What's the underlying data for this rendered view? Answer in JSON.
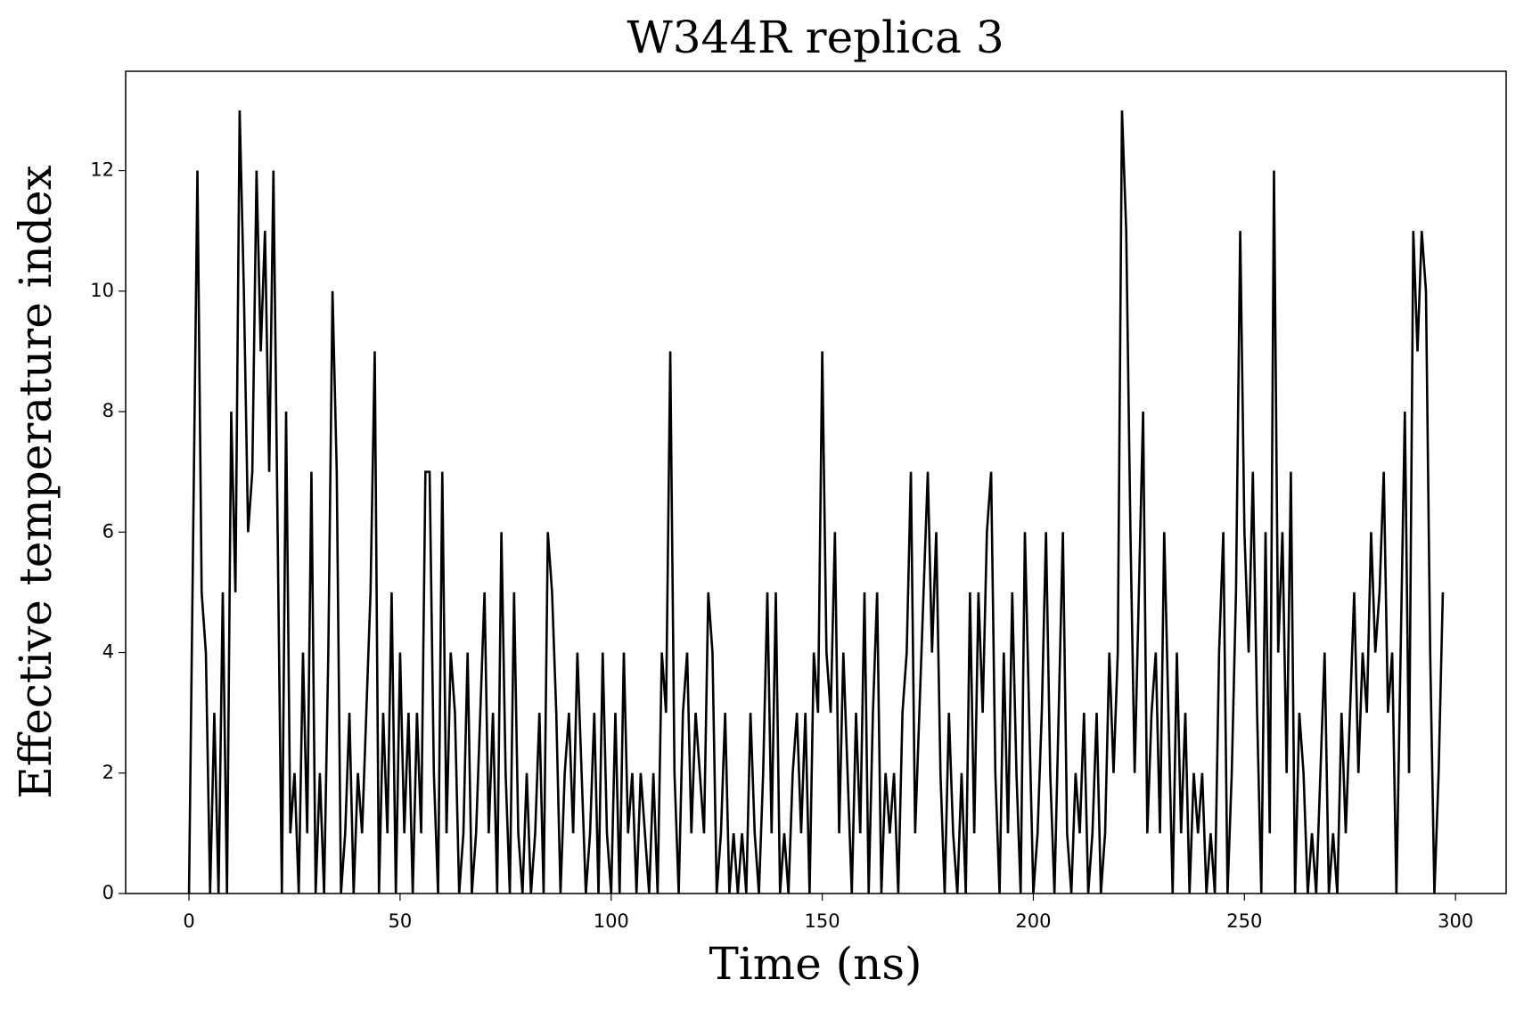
{
  "chart_data": {
    "type": "line",
    "title": "W344R replica 3",
    "x_label": "Time (ns)",
    "y_label": "Effective temperature index",
    "xlim": [
      -15,
      312
    ],
    "ylim": [
      0,
      13.65
    ],
    "xticks": [
      0,
      50,
      100,
      150,
      200,
      250,
      300
    ],
    "yticks": [
      0,
      2,
      4,
      6,
      8,
      10,
      12
    ],
    "color": "#000000",
    "x": [
      0,
      1,
      2,
      3,
      4,
      5,
      6,
      7,
      8,
      9,
      10,
      11,
      12,
      13,
      14,
      15,
      16,
      17,
      18,
      19,
      20,
      21,
      22,
      23,
      24,
      25,
      26,
      27,
      28,
      29,
      30,
      31,
      32,
      33,
      34,
      35,
      36,
      37,
      38,
      39,
      40,
      41,
      42,
      43,
      44,
      45,
      46,
      47,
      48,
      49,
      50,
      51,
      52,
      53,
      54,
      55,
      56,
      57,
      58,
      59,
      60,
      61,
      62,
      63,
      64,
      65,
      66,
      67,
      68,
      69,
      70,
      71,
      72,
      73,
      74,
      75,
      76,
      77,
      78,
      79,
      80,
      81,
      82,
      83,
      84,
      85,
      86,
      87,
      88,
      89,
      90,
      91,
      92,
      93,
      94,
      95,
      96,
      97,
      98,
      99,
      100,
      101,
      102,
      103,
      104,
      105,
      106,
      107,
      108,
      109,
      110,
      111,
      112,
      113,
      114,
      115,
      116,
      117,
      118,
      119,
      120,
      121,
      122,
      123,
      124,
      125,
      126,
      127,
      128,
      129,
      130,
      131,
      132,
      133,
      134,
      135,
      136,
      137,
      138,
      139,
      140,
      141,
      142,
      143,
      144,
      145,
      146,
      147,
      148,
      149,
      150,
      151,
      152,
      153,
      154,
      155,
      156,
      157,
      158,
      159,
      160,
      161,
      162,
      163,
      164,
      165,
      166,
      167,
      168,
      169,
      170,
      171,
      172,
      173,
      174,
      175,
      176,
      177,
      178,
      179,
      180,
      181,
      182,
      183,
      184,
      185,
      186,
      187,
      188,
      189,
      190,
      191,
      192,
      193,
      194,
      195,
      196,
      197,
      198,
      199,
      200,
      201,
      202,
      203,
      204,
      205,
      206,
      207,
      208,
      209,
      210,
      211,
      212,
      213,
      214,
      215,
      216,
      217,
      218,
      219,
      220,
      221,
      222,
      223,
      224,
      225,
      226,
      227,
      228,
      229,
      230,
      231,
      232,
      233,
      234,
      235,
      236,
      237,
      238,
      239,
      240,
      241,
      242,
      243,
      244,
      245,
      246,
      247,
      248,
      249,
      250,
      251,
      252,
      253,
      254,
      255,
      256,
      257,
      258,
      259,
      260,
      261,
      262,
      263,
      264,
      265,
      266,
      267,
      268,
      269,
      270,
      271,
      272,
      273,
      274,
      275,
      276,
      277,
      278,
      279,
      280,
      281,
      282,
      283,
      284,
      285,
      286,
      287,
      288,
      289,
      290,
      291,
      292,
      293,
      294,
      295,
      296,
      297
    ],
    "values": [
      0,
      6,
      12,
      5,
      4,
      0,
      3,
      0,
      5,
      0,
      8,
      5,
      13,
      10,
      6,
      7,
      12,
      9,
      11,
      7,
      12,
      6,
      0,
      8,
      1,
      2,
      0,
      4,
      1,
      7,
      0,
      2,
      0,
      4,
      10,
      7,
      0,
      1,
      3,
      0,
      2,
      1,
      3,
      5,
      9,
      0,
      3,
      1,
      5,
      0,
      4,
      1,
      3,
      0,
      3,
      1,
      7,
      7,
      2,
      0,
      7,
      1,
      4,
      3,
      0,
      1,
      4,
      0,
      1,
      3,
      5,
      1,
      3,
      0,
      6,
      2,
      0,
      5,
      1,
      0,
      2,
      0,
      1,
      3,
      0,
      6,
      5,
      3,
      0,
      2,
      3,
      1,
      4,
      2,
      0,
      1,
      3,
      0,
      4,
      1,
      0,
      3,
      0,
      4,
      1,
      2,
      0,
      2,
      1,
      0,
      2,
      0,
      4,
      3,
      9,
      2,
      0,
      3,
      4,
      1,
      3,
      2,
      1,
      5,
      4,
      0,
      1,
      3,
      0,
      1,
      0,
      1,
      0,
      3,
      1,
      0,
      2,
      5,
      1,
      5,
      0,
      1,
      0,
      2,
      3,
      1,
      3,
      0,
      4,
      3,
      9,
      4,
      3,
      6,
      1,
      4,
      2,
      0,
      3,
      1,
      5,
      0,
      3,
      5,
      0,
      2,
      1,
      2,
      0,
      3,
      4,
      7,
      1,
      3,
      5,
      7,
      4,
      6,
      2,
      0,
      3,
      1,
      0,
      2,
      0,
      5,
      1,
      5,
      3,
      6,
      7,
      2,
      0,
      4,
      1,
      5,
      2,
      0,
      6,
      3,
      0,
      1,
      3,
      6,
      2,
      0,
      3,
      6,
      1,
      0,
      2,
      1,
      3,
      0,
      1,
      3,
      0,
      1,
      4,
      2,
      4,
      13,
      11,
      6,
      2,
      5,
      8,
      1,
      3,
      4,
      1,
      6,
      3,
      0,
      4,
      1,
      3,
      0,
      2,
      1,
      2,
      0,
      1,
      0,
      4,
      6,
      0,
      2,
      5,
      11,
      6,
      4,
      7,
      3,
      0,
      6,
      1,
      12,
      4,
      6,
      2,
      7,
      0,
      3,
      2,
      0,
      1,
      0,
      2,
      4,
      0,
      1,
      0,
      3,
      1,
      3,
      5,
      2,
      4,
      3,
      6,
      4,
      5,
      7,
      3,
      4,
      0,
      4,
      8,
      2,
      11,
      9,
      11,
      10,
      4,
      0,
      2,
      5
    ]
  }
}
